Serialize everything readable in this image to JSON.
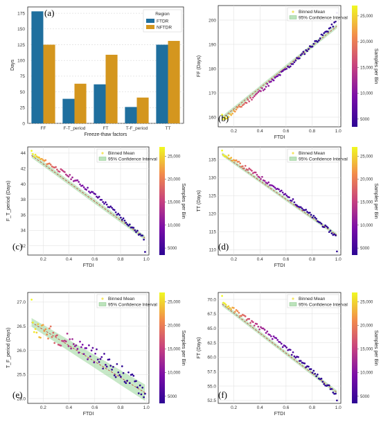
{
  "chart_data": [
    {
      "panel_label": "(a)",
      "type": "bar",
      "categories": [
        "FF",
        "F-T_period",
        "FT",
        "T-F_period",
        "TT"
      ],
      "series": [
        {
          "name": "FTDR",
          "values": [
            178,
            39,
            62,
            26,
            125
          ],
          "color": "#1f6f9e"
        },
        {
          "name": "NFTDR",
          "values": [
            125,
            63,
            109,
            41,
            131
          ],
          "color": "#d4961e"
        }
      ],
      "xlabel": "Freeze-thaw factors",
      "ylabel": "Days",
      "ylim": [
        0,
        185
      ],
      "yticks": [
        "0",
        "25",
        "50",
        "75",
        "100",
        "125",
        "150",
        "175"
      ],
      "legend": {
        "title": "Region",
        "position": "top-right"
      },
      "grid": true
    },
    {
      "panel_label": "(b)",
      "type": "scatter",
      "xlabel": "FTDI",
      "ylabel": "FF (Days)",
      "xlim": [
        0.08,
        1.02
      ],
      "ylim": [
        156,
        206
      ],
      "xticks": [
        "0.2",
        "0.4",
        "0.6",
        "0.8",
        "1.0"
      ],
      "yticks": [
        "160",
        "170",
        "180",
        "190",
        "200"
      ],
      "fit": {
        "start": 159.5,
        "end": 197.5,
        "ci_halfwidth": 0.9
      },
      "binned_mean": {
        "label": "Binned Mean",
        "start": 158.5,
        "end": 199.5,
        "amplitude": -1.6,
        "noise": 0.8,
        "first_value": 161,
        "last_value": 203
      },
      "colorbar": {
        "label": "Samples per Bin",
        "ticks": [
          "5000",
          "10,000",
          "15,000",
          "20,000",
          "25,000"
        ]
      },
      "legend_labels": [
        "Binned Mean",
        "95% Confidence Interval"
      ],
      "grid": true
    },
    {
      "panel_label": "(c)",
      "type": "scatter",
      "xlabel": "FTDI",
      "ylabel": "F_T_period (Days)",
      "xlim": [
        0.08,
        1.02
      ],
      "ylim": [
        30.8,
        44.8
      ],
      "xticks": [
        "0.2",
        "0.4",
        "0.6",
        "0.8",
        "1.0"
      ],
      "yticks": [
        "32",
        "34",
        "36",
        "38",
        "40",
        "42",
        "44"
      ],
      "fit": {
        "start": 43.7,
        "end": 33.0,
        "ci_halfwidth": 0.3
      },
      "binned_mean": {
        "label": "Binned Mean",
        "start": 43.9,
        "end": 32.8,
        "amplitude": 0.9,
        "noise": 0.25,
        "first_value": 44.3,
        "last_value": 31.2
      },
      "colorbar": {
        "label": "Samples per Bin",
        "ticks": [
          "5000",
          "10,000",
          "15,000",
          "20,000",
          "25,000"
        ]
      },
      "legend_labels": [
        "Binned Mean",
        "95% Confidence Interval"
      ],
      "grid": true
    },
    {
      "panel_label": "(d)",
      "type": "scatter",
      "xlabel": "FTDI",
      "ylabel": "TT (Days)",
      "xlim": [
        0.08,
        1.02
      ],
      "ylim": [
        108.5,
        138.5
      ],
      "xticks": [
        "0.2",
        "0.4",
        "0.6",
        "0.8",
        "1.0"
      ],
      "yticks": [
        "110",
        "115",
        "120",
        "125",
        "130",
        "135"
      ],
      "fit": {
        "start": 136.5,
        "end": 114.0,
        "ci_halfwidth": 0.5
      },
      "binned_mean": {
        "label": "Binned Mean",
        "start": 136.8,
        "end": 113.5,
        "amplitude": 1.2,
        "noise": 0.5,
        "first_value": 137.5,
        "last_value": 109.5
      },
      "colorbar": {
        "label": "Samples per Bin",
        "ticks": [
          "5000",
          "10,000",
          "15,000",
          "20,000",
          "25,000"
        ]
      },
      "legend_labels": [
        "Binned Mean",
        "95% Confidence Interval"
      ],
      "grid": true
    },
    {
      "panel_label": "(e)",
      "type": "scatter",
      "xlabel": "FTDI",
      "ylabel": "T_F_period (Days)",
      "xlim": [
        0.08,
        1.02
      ],
      "ylim": [
        24.9,
        27.2
      ],
      "xticks": [
        "0.2",
        "0.4",
        "0.6",
        "0.8",
        "1.0"
      ],
      "yticks": [
        "25.0",
        "25.5",
        "26.0",
        "26.5",
        "27.0"
      ],
      "fit": {
        "start": 26.58,
        "end": 25.12,
        "ci_halfwidth": 0.09,
        "ci_growth": 0.1
      },
      "binned_mean": {
        "label": "Binned Mean",
        "start": 26.5,
        "end": 25.15,
        "amplitude": 0.15,
        "noise": 0.17,
        "first_value": 27.05,
        "last_value": 25.1
      },
      "colorbar": {
        "label": "Samples per Bin",
        "ticks": [
          "5000",
          "10,000",
          "15,000",
          "20,000",
          "25,000"
        ]
      },
      "legend_labels": [
        "Binned Mean",
        "95% Confidence Interval"
      ],
      "grid": true
    },
    {
      "panel_label": "(f)",
      "type": "scatter",
      "xlabel": "FTDI",
      "ylabel": "FT (Days)",
      "xlim": [
        0.08,
        1.02
      ],
      "ylim": [
        52.0,
        71.2
      ],
      "xticks": [
        "0.2",
        "0.4",
        "0.6",
        "0.8",
        "1.0"
      ],
      "yticks": [
        "52.5",
        "55.0",
        "57.5",
        "60.0",
        "62.5",
        "65.0",
        "67.5",
        "70.0"
      ],
      "fit": {
        "start": 69.2,
        "end": 53.9,
        "ci_halfwidth": 0.35
      },
      "binned_mean": {
        "label": "Binned Mean",
        "start": 69.5,
        "end": 53.5,
        "amplitude": 1.0,
        "noise": 0.35,
        "first_value": 70.6,
        "last_value": 52.5
      },
      "colorbar": {
        "label": "Samples per Bin",
        "ticks": [
          "5000",
          "10,000",
          "15,000",
          "20,000",
          "25,000"
        ]
      },
      "legend_labels": [
        "Binned Mean",
        "95% Confidence Interval"
      ],
      "grid": true
    }
  ]
}
